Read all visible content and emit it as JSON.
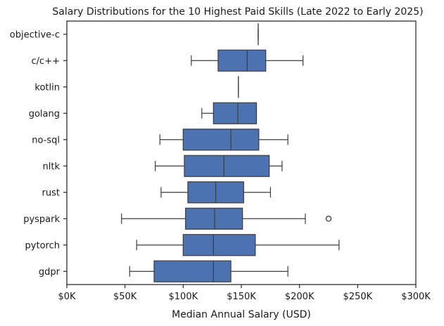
{
  "chart_data": {
    "type": "box",
    "orientation": "horizontal",
    "title": "Salary Distributions for the 10 Highest Paid Skills (Late 2022 to Early 2025)",
    "xlabel": "Median Annual Salary (USD)",
    "ylabel": "",
    "xlim": [
      0,
      300000
    ],
    "xticks": [
      0,
      50000,
      100000,
      150000,
      200000,
      250000,
      300000
    ],
    "xtick_labels": [
      "$0K",
      "$50K",
      "$100K",
      "$150K",
      "$200K",
      "$250K",
      "$300K"
    ],
    "grid": false,
    "box_color": "#4C72B0",
    "line_color": "#3d3d3d",
    "categories": [
      "objective-c",
      "c/c++",
      "kotlin",
      "golang",
      "no-sql",
      "nltk",
      "rust",
      "pyspark",
      "pytorch",
      "gdpr"
    ],
    "boxes": [
      {
        "skill": "objective-c",
        "whisker_low": 164500,
        "q1": 164500,
        "median": 164500,
        "q3": 164500,
        "whisker_high": 164500,
        "outliers": []
      },
      {
        "skill": "c/c++",
        "whisker_low": 107000,
        "q1": 130000,
        "median": 155000,
        "q3": 171000,
        "whisker_high": 203000,
        "outliers": []
      },
      {
        "skill": "kotlin",
        "whisker_low": 147500,
        "q1": 147500,
        "median": 147500,
        "q3": 147500,
        "whisker_high": 147500,
        "outliers": []
      },
      {
        "skill": "golang",
        "whisker_low": 116000,
        "q1": 126000,
        "median": 147000,
        "q3": 163000,
        "whisker_high": 163000,
        "outliers": []
      },
      {
        "skill": "no-sql",
        "whisker_low": 80000,
        "q1": 100000,
        "median": 141000,
        "q3": 165000,
        "whisker_high": 190000,
        "outliers": []
      },
      {
        "skill": "nltk",
        "whisker_low": 76000,
        "q1": 101000,
        "median": 135000,
        "q3": 174000,
        "whisker_high": 185000,
        "outliers": []
      },
      {
        "skill": "rust",
        "whisker_low": 81000,
        "q1": 104000,
        "median": 128000,
        "q3": 152000,
        "whisker_high": 175000,
        "outliers": []
      },
      {
        "skill": "pyspark",
        "whisker_low": 47000,
        "q1": 102000,
        "median": 127000,
        "q3": 151000,
        "whisker_high": 205000,
        "outliers": [
          225000
        ]
      },
      {
        "skill": "pytorch",
        "whisker_low": 60000,
        "q1": 100000,
        "median": 126000,
        "q3": 162000,
        "whisker_high": 234000,
        "outliers": []
      },
      {
        "skill": "gdpr",
        "whisker_low": 54000,
        "q1": 75000,
        "median": 126000,
        "q3": 141000,
        "whisker_high": 190000,
        "outliers": []
      }
    ]
  }
}
